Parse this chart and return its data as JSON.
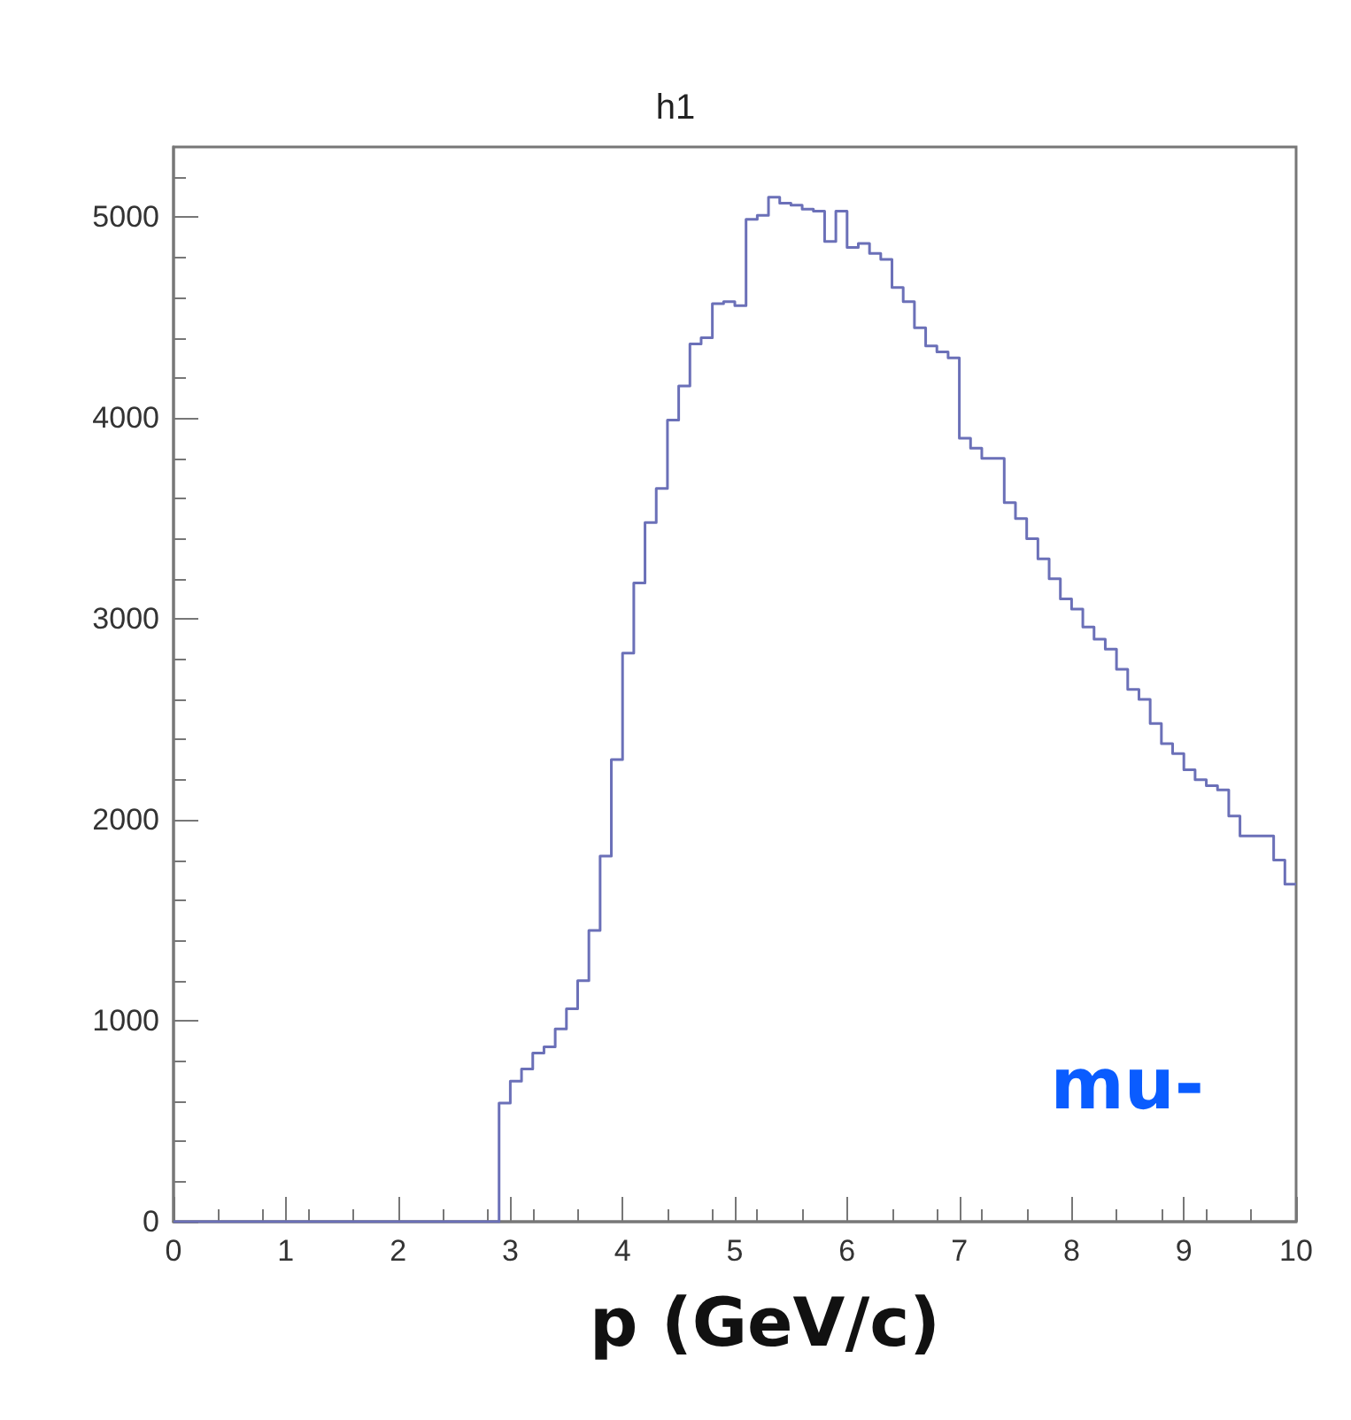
{
  "chart_data": {
    "type": "histogram",
    "title": "h1",
    "xlabel": "p (GeV/c)",
    "annotations": [
      "mu-"
    ],
    "color": "#6b70b8",
    "bins": [
      0,
      0.1,
      0.2,
      0.3,
      0.4,
      0.5,
      0.6,
      0.7,
      0.8,
      0.9,
      1,
      1.1,
      1.2,
      1.3,
      1.4,
      1.5,
      1.6,
      1.7,
      1.8,
      1.9,
      2,
      2.1,
      2.2,
      2.3,
      2.4,
      2.5,
      2.6,
      2.7,
      2.8,
      2.9,
      3,
      3.1,
      3.2,
      3.3,
      3.4,
      3.5,
      3.6,
      3.7,
      3.8,
      3.9,
      4,
      4.1,
      4.2,
      4.3,
      4.4,
      4.5,
      4.6,
      4.7,
      4.8,
      4.9,
      5,
      5.1,
      5.2,
      5.3,
      5.4,
      5.5,
      5.6,
      5.7,
      5.8,
      5.9,
      6,
      6.1,
      6.2,
      6.3,
      6.4,
      6.5,
      6.6,
      6.7,
      6.8,
      6.9,
      7,
      7.1,
      7.2,
      7.3,
      7.4,
      7.5,
      7.6,
      7.7,
      7.8,
      7.9,
      8,
      8.1,
      8.2,
      8.3,
      8.4,
      8.5,
      8.6,
      8.7,
      8.8,
      8.9,
      9,
      9.1,
      9.2,
      9.3,
      9.4,
      9.5,
      9.6,
      9.7,
      9.8,
      9.9,
      10
    ],
    "values": [
      0,
      0,
      0,
      0,
      0,
      0,
      0,
      0,
      0,
      0,
      0,
      0,
      0,
      0,
      0,
      0,
      0,
      0,
      0,
      0,
      0,
      0,
      0,
      0,
      0,
      0,
      0,
      0,
      0,
      590,
      700,
      760,
      840,
      870,
      960,
      1060,
      1200,
      1450,
      1820,
      2300,
      2830,
      3180,
      3480,
      3650,
      3990,
      4160,
      4370,
      4400,
      4570,
      4580,
      4560,
      4990,
      5010,
      5100,
      5070,
      5060,
      5040,
      5030,
      4880,
      5030,
      4850,
      4870,
      4820,
      4790,
      4650,
      4580,
      4450,
      4360,
      4330,
      4300,
      3900,
      3850,
      3800,
      3800,
      3580,
      3500,
      3400,
      3300,
      3200,
      3100,
      3050,
      2960,
      2900,
      2850,
      2750,
      2650,
      2600,
      2480,
      2380,
      2330,
      2250,
      2200,
      2170,
      2150,
      2020,
      1920,
      1920,
      1920,
      1800,
      1680
    ],
    "xlim": [
      0,
      10
    ],
    "xticks": [
      0,
      1,
      2,
      3,
      4,
      5,
      6,
      7,
      8,
      9,
      10
    ],
    "ylim": [
      0,
      5350
    ],
    "yticks": [
      0,
      1000,
      2000,
      3000,
      4000,
      5000
    ],
    "grid": false
  }
}
